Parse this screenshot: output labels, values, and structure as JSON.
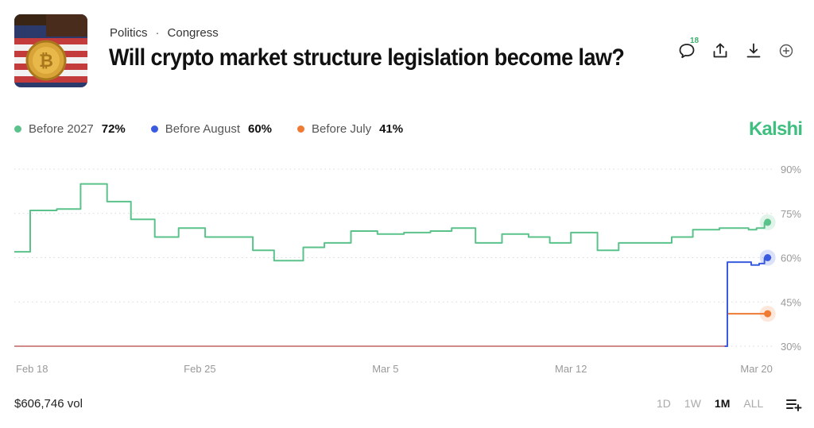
{
  "header": {
    "category": "Politics",
    "subcategory": "Congress",
    "title": "Will crypto market structure legislation become law?",
    "comment_count": "18"
  },
  "brand": "Kalshi",
  "legend": [
    {
      "name": "Before 2027",
      "value": "72%",
      "color": "#5ac28a"
    },
    {
      "name": "Before August",
      "value": "60%",
      "color": "#3a5be0"
    },
    {
      "name": "Before July",
      "value": "41%",
      "color": "#ee7a33"
    }
  ],
  "footer": {
    "volume": "$606,746 vol",
    "ranges": [
      "1D",
      "1W",
      "1M",
      "ALL"
    ],
    "active_range": "1M"
  },
  "icons": {
    "comment": "comment-icon",
    "share": "share-icon",
    "download": "download-icon",
    "add": "add-icon",
    "list": "list-add-icon"
  },
  "chart_data": {
    "type": "line",
    "x_ticks": [
      "Feb 18",
      "Feb 25",
      "Mar 5",
      "Mar 12",
      "Mar 20"
    ],
    "x_tick_days": [
      0,
      7,
      14,
      21,
      28
    ],
    "y_ticks": [
      "90%",
      "75%",
      "60%",
      "45%",
      "30%"
    ],
    "y_tick_values": [
      90,
      75,
      60,
      45,
      30
    ],
    "ylim": [
      30,
      90
    ],
    "xlim": [
      0,
      28.7
    ],
    "grid": true,
    "series": [
      {
        "name": "Before 2027",
        "color": "#5ac28a",
        "step": true,
        "points": [
          [
            0,
            62
          ],
          [
            0.6,
            76
          ],
          [
            1.6,
            76.5
          ],
          [
            2.5,
            85
          ],
          [
            3.5,
            79
          ],
          [
            4.4,
            73
          ],
          [
            5.3,
            67
          ],
          [
            6.2,
            70
          ],
          [
            7.2,
            67
          ],
          [
            8.2,
            67
          ],
          [
            9.0,
            62.5
          ],
          [
            9.8,
            59
          ],
          [
            10.9,
            63.5
          ],
          [
            11.7,
            65
          ],
          [
            12.7,
            69
          ],
          [
            13.7,
            68
          ],
          [
            14.7,
            68.5
          ],
          [
            15.7,
            69
          ],
          [
            16.5,
            70
          ],
          [
            17.4,
            65
          ],
          [
            18.4,
            68
          ],
          [
            19.4,
            67
          ],
          [
            20.2,
            65
          ],
          [
            21.0,
            68.5
          ],
          [
            22.0,
            62.5
          ],
          [
            22.8,
            65
          ],
          [
            23.8,
            65
          ],
          [
            24.8,
            67
          ],
          [
            25.6,
            69.5
          ],
          [
            26.6,
            70
          ],
          [
            27.7,
            69.5
          ],
          [
            28.0,
            70
          ],
          [
            28.3,
            72
          ]
        ]
      },
      {
        "name": "Before August",
        "color": "#3a5be0",
        "step": true,
        "points": [
          [
            26.8,
            30
          ],
          [
            26.9,
            58.5
          ],
          [
            27.7,
            58.5
          ],
          [
            27.8,
            57.5
          ],
          [
            28.1,
            58
          ],
          [
            28.3,
            60
          ]
        ]
      },
      {
        "name": "Before July",
        "color": "#ee7a33",
        "step": true,
        "points": [
          [
            26.8,
            30
          ],
          [
            26.9,
            41
          ],
          [
            28.0,
            41
          ],
          [
            28.3,
            41
          ]
        ]
      },
      {
        "name": "",
        "color": "#d08a8a",
        "step": true,
        "points": [
          [
            0,
            30
          ],
          [
            26.9,
            30
          ]
        ]
      }
    ]
  }
}
